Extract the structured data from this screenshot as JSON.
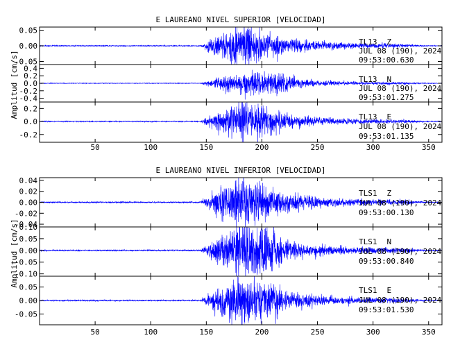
{
  "chart_data": [
    {
      "type": "line",
      "title": "E LAUREANO NIVEL SUPERIOR [VELOCIDAD]",
      "ylabel": "Amplitud [cm/s]",
      "xlim": [
        0,
        362
      ],
      "xticks": [
        50,
        100,
        150,
        200,
        250,
        300,
        350
      ],
      "line_color": "#0000ff",
      "traces": [
        {
          "station": "TL13",
          "component": "Z",
          "date": "JUL 08 (190), 2024",
          "time": "09:53:00.630",
          "ylim": [
            -0.06,
            0.06
          ],
          "yticks": [
            0.05,
            0.0,
            -0.05
          ],
          "ytick_labels": [
            "0.05",
            "0.00",
            "-0.05"
          ],
          "onset": 145,
          "peak_time": 185,
          "peak_amp": 0.058,
          "end_time": 330,
          "envelope": "z",
          "seed": 11
        },
        {
          "station": "TL13",
          "component": "N",
          "date": "JUL 08 (190), 2024",
          "time": "09:53:01.275",
          "ylim": [
            -0.5,
            0.5
          ],
          "yticks": [
            0.4,
            0.2,
            0.0,
            -0.2,
            -0.4
          ],
          "ytick_labels": [
            "0.4",
            "0.2",
            "0.0",
            "-0.2",
            "-0.4"
          ],
          "onset": 145,
          "peak_time": 195,
          "peak_amp": 0.28,
          "end_time": 330,
          "envelope": "n",
          "seed": 23
        },
        {
          "station": "TL13",
          "component": "E",
          "date": "JUL 08 (190), 2024",
          "time": "09:53:01.135",
          "ylim": [
            -0.32,
            0.3
          ],
          "yticks": [
            0.2,
            0.0,
            -0.2
          ],
          "ytick_labels": [
            "0.2",
            "0.0",
            "-0.2"
          ],
          "onset": 145,
          "peak_time": 185,
          "peak_amp": 0.27,
          "end_time": 330,
          "envelope": "e",
          "seed": 37
        }
      ]
    },
    {
      "type": "line",
      "title": "E LAUREANO NIVEL INFERIOR [VELOCIDAD]",
      "ylabel": "Amplitud [cm/s]",
      "xlim": [
        0,
        362
      ],
      "xticks": [
        50,
        100,
        150,
        200,
        250,
        300,
        350
      ],
      "line_color": "#0000ff",
      "traces": [
        {
          "station": "TLS1",
          "component": "Z",
          "date": "JUL 08 (190), 2024",
          "time": "09:53:00.130",
          "ylim": [
            -0.045,
            0.045
          ],
          "yticks": [
            0.04,
            0.02,
            0.0,
            -0.02,
            -0.04
          ],
          "ytick_labels": [
            "0.04",
            "0.02",
            "0.00",
            "-0.02",
            "-0.04"
          ],
          "onset": 145,
          "peak_time": 182,
          "peak_amp": 0.043,
          "end_time": 330,
          "envelope": "z",
          "seed": 41
        },
        {
          "station": "TLS1",
          "component": "N",
          "date": "JUL 08 (190), 2024",
          "time": "09:53:00.840",
          "ylim": [
            -0.11,
            0.1
          ],
          "yticks": [
            0.1,
            0.05,
            0.0,
            -0.05,
            -0.1
          ],
          "ytick_labels": [
            "0.10",
            "0.05",
            "0.00",
            "-0.05",
            "-0.10"
          ],
          "onset": 145,
          "peak_time": 183,
          "peak_amp": 0.1,
          "end_time": 330,
          "envelope": "n",
          "seed": 53
        },
        {
          "station": "TLS1",
          "component": "E",
          "date": "JUL 08 (190), 2024",
          "time": "09:53:01.530",
          "ylim": [
            -0.09,
            0.09
          ],
          "yticks": [
            0.05,
            0.0,
            -0.05
          ],
          "ytick_labels": [
            "0.05",
            "0.00",
            "-0.05"
          ],
          "onset": 145,
          "peak_time": 183,
          "peak_amp": 0.085,
          "end_time": 330,
          "envelope": "e",
          "seed": 67
        }
      ]
    }
  ]
}
